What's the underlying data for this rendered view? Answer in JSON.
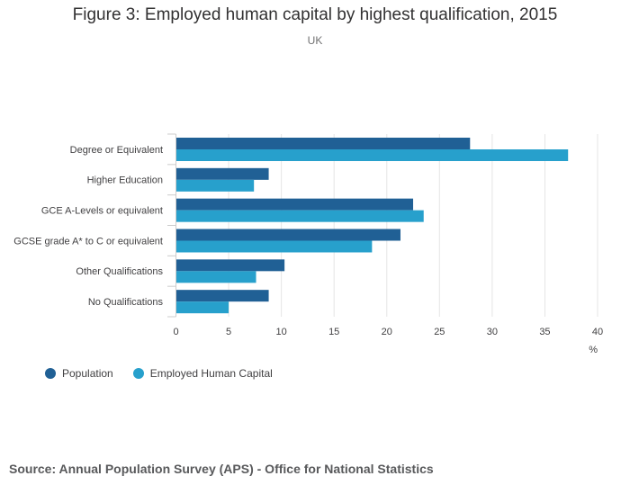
{
  "chart_data": {
    "type": "bar",
    "orientation": "horizontal",
    "title": "Figure 3: Employed human capital by highest qualification, 2015",
    "subtitle": "UK",
    "categories": [
      "Degree or Equivalent",
      "Higher Education",
      "GCE A-Levels or equivalent",
      "GCSE grade A* to C or equivalent",
      "Other Qualifications",
      "No Qualifications"
    ],
    "series": [
      {
        "name": "Population",
        "color": "#206095",
        "values": [
          27.9,
          8.8,
          22.5,
          21.3,
          10.3,
          8.8
        ]
      },
      {
        "name": "Employed Human Capital",
        "color": "#27a0cc",
        "values": [
          37.2,
          7.4,
          23.5,
          18.6,
          7.6,
          5.0
        ]
      }
    ],
    "x_ticks": [
      "0",
      "5",
      "10",
      "15",
      "20",
      "25",
      "30",
      "35",
      "40"
    ],
    "xlim": [
      0,
      40
    ],
    "xlabel": "%",
    "ylabel": "",
    "grid": true,
    "legend": "bottom-left"
  },
  "source": "Source: Annual Population Survey (APS) - Office for National Statistics"
}
